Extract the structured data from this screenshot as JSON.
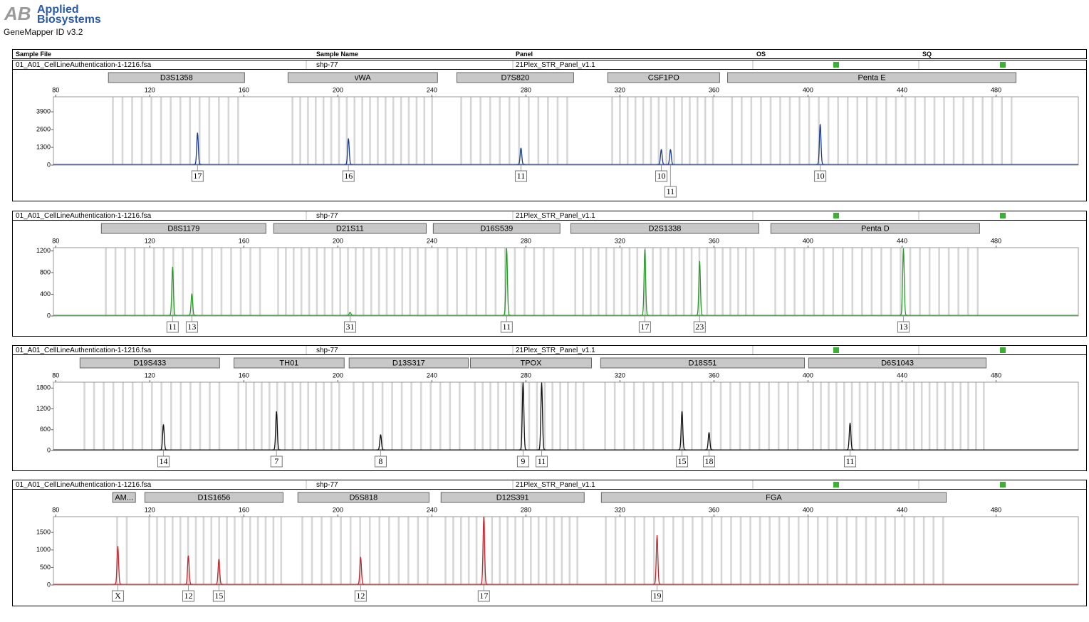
{
  "logo": {
    "mark": "AB",
    "line1": "Applied",
    "line2": "Biosystems"
  },
  "app": "GeneMapper ID v3.2",
  "columns": [
    "Sample File",
    "Sample Name",
    "Panel",
    "OS",
    "SQ"
  ],
  "chart_data": [
    {
      "type": "line",
      "sample_file": "01_A01_CellLineAuthentication-1-1216.fsa",
      "sample_name": "shp-77",
      "panel": "21Plex_STR_Panel_v1.1",
      "color": "#1c3a8c",
      "xlim": [
        79,
        515
      ],
      "xticks": [
        80,
        120,
        160,
        200,
        240,
        280,
        320,
        360,
        400,
        440,
        480
      ],
      "ylim": [
        0,
        5000
      ],
      "yticks": [
        0,
        1300,
        2600,
        3900
      ],
      "loci": [
        {
          "name": "D3S1358",
          "start": 102.4,
          "end": 160.3
        },
        {
          "name": "vWA",
          "start": 178.8,
          "end": 242.4
        },
        {
          "name": "D7S820",
          "start": 250.6,
          "end": 300.3
        },
        {
          "name": "CSF1PO",
          "start": 314.8,
          "end": 362.4
        },
        {
          "name": "Penta E",
          "start": 365.8,
          "end": 488.5
        }
      ],
      "peaks": [
        {
          "x": 140.3,
          "height": 2370,
          "label": "17"
        },
        {
          "x": 204.5,
          "height": 1950,
          "label": "16"
        },
        {
          "x": 277.9,
          "height": 1260,
          "label": "11"
        },
        {
          "x": 337.6,
          "height": 1160,
          "label": "10"
        },
        {
          "x": 341.5,
          "height": 1160,
          "label": "11"
        },
        {
          "x": 405.2,
          "height": 3000,
          "label": "10"
        }
      ]
    },
    {
      "type": "line",
      "sample_file": "01_A01_CellLineAuthentication-1-1216.fsa",
      "sample_name": "shp-77",
      "panel": "21Plex_STR_Panel_v1.1",
      "color": "#2a9a2a",
      "xlim": [
        79,
        515
      ],
      "xticks": [
        80,
        120,
        160,
        200,
        240,
        280,
        320,
        360,
        400,
        440,
        480
      ],
      "ylim": [
        0,
        1260
      ],
      "yticks": [
        0,
        400,
        800,
        1200
      ],
      "loci": [
        {
          "name": "D8S1179",
          "start": 99.4,
          "end": 169.4
        },
        {
          "name": "D21S11",
          "start": 172.7,
          "end": 237.6
        },
        {
          "name": "D16S539",
          "start": 240.6,
          "end": 294.5
        },
        {
          "name": "D2S1338",
          "start": 299.1,
          "end": 379.1
        },
        {
          "name": "Penta D",
          "start": 384.2,
          "end": 473.0
        }
      ],
      "peaks": [
        {
          "x": 129.7,
          "height": 907,
          "label": "11"
        },
        {
          "x": 137.9,
          "height": 413,
          "label": "13"
        },
        {
          "x": 205.2,
          "height": 67,
          "label": "31"
        },
        {
          "x": 271.8,
          "height": 1250,
          "label": "11"
        },
        {
          "x": 330.6,
          "height": 1227,
          "label": "17"
        },
        {
          "x": 353.9,
          "height": 1013,
          "label": "23"
        },
        {
          "x": 440.6,
          "height": 1250,
          "label": "13"
        }
      ]
    },
    {
      "type": "line",
      "sample_file": "01_A01_CellLineAuthentication-1-1216.fsa",
      "sample_name": "shp-77",
      "panel": "21Plex_STR_Panel_v1.1",
      "color": "#111111",
      "xlim": [
        79,
        515
      ],
      "xticks": [
        80,
        120,
        160,
        200,
        240,
        280,
        320,
        360,
        400,
        440,
        480
      ],
      "ylim": [
        0,
        1970
      ],
      "yticks": [
        0,
        600,
        1200,
        1800
      ],
      "loci": [
        {
          "name": "D19S433",
          "start": 90.3,
          "end": 149.7
        },
        {
          "name": "TH01",
          "start": 155.8,
          "end": 202.7
        },
        {
          "name": "D13S317",
          "start": 204.8,
          "end": 255.5
        },
        {
          "name": "TPOX",
          "start": 256.4,
          "end": 307.9
        },
        {
          "name": "D18S51",
          "start": 311.8,
          "end": 398.5
        },
        {
          "name": "D6S1043",
          "start": 400.3,
          "end": 475.8
        }
      ],
      "peaks": [
        {
          "x": 125.8,
          "height": 753,
          "label": "14"
        },
        {
          "x": 173.9,
          "height": 1130,
          "label": "7"
        },
        {
          "x": 218.2,
          "height": 460,
          "label": "8"
        },
        {
          "x": 278.8,
          "height": 1960,
          "label": "9"
        },
        {
          "x": 286.7,
          "height": 1960,
          "label": "11"
        },
        {
          "x": 346.4,
          "height": 1130,
          "label": "15"
        },
        {
          "x": 357.9,
          "height": 523,
          "label": "18"
        },
        {
          "x": 417.9,
          "height": 795,
          "label": "11"
        }
      ]
    },
    {
      "type": "line",
      "sample_file": "01_A01_CellLineAuthentication-1-1216.fsa",
      "sample_name": "shp-77",
      "panel": "21Plex_STR_Panel_v1.1",
      "color": "#c0282d",
      "xlim": [
        79,
        515
      ],
      "xticks": [
        80,
        120,
        160,
        200,
        240,
        280,
        320,
        360,
        400,
        440,
        480
      ],
      "ylim": [
        0,
        1950
      ],
      "yticks": [
        0,
        500,
        1000,
        1500
      ],
      "loci": [
        {
          "name": "AM...",
          "start": 104.2,
          "end": 113.9
        },
        {
          "name": "D1S1656",
          "start": 117.9,
          "end": 176.7
        },
        {
          "name": "D5S818",
          "start": 183.0,
          "end": 238.8
        },
        {
          "name": "D12S391",
          "start": 243.9,
          "end": 304.8
        },
        {
          "name": "FGA",
          "start": 312.1,
          "end": 458.8
        }
      ],
      "peaks": [
        {
          "x": 106.4,
          "height": 1110,
          "label": "X"
        },
        {
          "x": 136.4,
          "height": 840,
          "label": "12"
        },
        {
          "x": 149.4,
          "height": 740,
          "label": "15"
        },
        {
          "x": 209.7,
          "height": 800,
          "label": "12"
        },
        {
          "x": 262.1,
          "height": 1950,
          "label": "17"
        },
        {
          "x": 335.8,
          "height": 1420,
          "label": "19"
        }
      ]
    }
  ]
}
